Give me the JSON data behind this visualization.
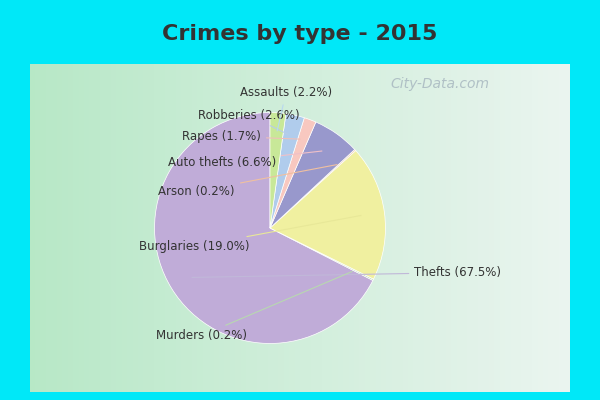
{
  "title": "Crimes by type - 2015",
  "title_fontsize": 16,
  "values": [
    67.5,
    0.2,
    19.0,
    0.2,
    6.6,
    1.7,
    2.6,
    2.2
  ],
  "slice_labels": [
    "Thefts (67.5%)",
    "Murders (0.2%)",
    "Burglaries (19.0%)",
    "Arson (0.2%)",
    "Auto thefts (6.6%)",
    "Rapes (1.7%)",
    "Robberies (2.6%)",
    "Assaults (2.2%)"
  ],
  "colors": [
    "#c0acd8",
    "#b8d8b0",
    "#f0f0a0",
    "#f0c8a8",
    "#9898cc",
    "#f8c8c0",
    "#b0ccec",
    "#c8e898"
  ],
  "line_colors": [
    "#c0b8d8",
    "#b8d8b0",
    "#e8e898",
    "#f0c0a0",
    "#f0c0c8",
    "#f0c0b8",
    "#b8cce8",
    "#b8d8f0"
  ],
  "outer_background": "#00e8f8",
  "inner_background_left": "#b8e8c8",
  "inner_background_right": "#e8f4f0",
  "startangle": 90,
  "label_fontsize": 8.5,
  "watermark_text": "City-Data.com",
  "watermark_color": "#a8b8c0",
  "watermark_fontsize": 10,
  "title_color": "#333333",
  "label_color": "#333333"
}
